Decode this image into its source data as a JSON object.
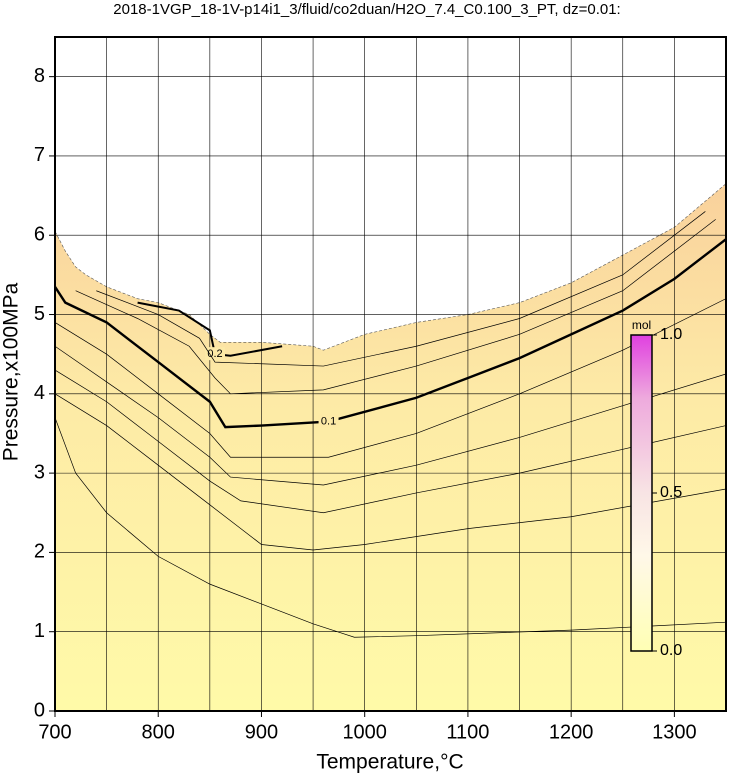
{
  "chart_data": {
    "type": "contour",
    "title": "2018-1VGP_18-1V-p14i1_3/fluid/co2duan/H2O_7.4_C0.100_3_PT, dz=0.01:",
    "x_label": "Temperature,°C",
    "y_label": "Pressure,x100MPa",
    "xlim": [
      700,
      1350
    ],
    "ylim": [
      0,
      8.5
    ],
    "xticks": [
      700,
      800,
      900,
      1000,
      1100,
      1200,
      1300
    ],
    "yticks": [
      0,
      1,
      2,
      3,
      4,
      5,
      6,
      7,
      8
    ],
    "xgrid": [
      750,
      800,
      850,
      900,
      950,
      1000,
      1050,
      1100,
      1150,
      1200,
      1250,
      1300
    ],
    "ygrid": [
      1,
      2,
      3,
      4,
      5,
      6,
      7,
      8
    ],
    "grid": true,
    "boundary": {
      "x": [
        700,
        710,
        720,
        730,
        750,
        780,
        800,
        830,
        850,
        860,
        900,
        950,
        960,
        1000,
        1050,
        1100,
        1150,
        1200,
        1250,
        1300,
        1350
      ],
      "y": [
        6.05,
        5.8,
        5.6,
        5.5,
        5.35,
        5.2,
        5.15,
        5.0,
        4.75,
        4.65,
        4.65,
        4.6,
        4.55,
        4.75,
        4.9,
        5.0,
        5.15,
        5.4,
        5.75,
        6.1,
        6.65
      ]
    },
    "contours": [
      {
        "level": 0.2,
        "width": 2,
        "x": [
          780,
          820,
          850,
          855,
          870,
          920
        ],
        "y": [
          5.15,
          5.05,
          4.8,
          4.5,
          4.48,
          4.6
        ]
      },
      {
        "level": 0.1,
        "width": 2.4,
        "x": [
          700,
          710,
          750,
          800,
          850,
          865,
          900,
          965,
          1050,
          1100,
          1150,
          1200,
          1250,
          1300,
          1350
        ],
        "y": [
          5.35,
          5.15,
          4.9,
          4.4,
          3.9,
          3.58,
          3.6,
          3.65,
          3.95,
          4.2,
          4.45,
          4.75,
          5.05,
          5.45,
          5.95
        ]
      },
      {
        "width": 0.7,
        "x": [
          740,
          800,
          840,
          855,
          960,
          1050,
          1150,
          1250,
          1330
        ],
        "y": [
          5.3,
          5.0,
          4.7,
          4.4,
          4.35,
          4.6,
          4.95,
          5.5,
          6.3
        ]
      },
      {
        "width": 0.7,
        "x": [
          720,
          780,
          830,
          855,
          870,
          960,
          1050,
          1150,
          1250,
          1340
        ],
        "y": [
          5.3,
          4.95,
          4.6,
          4.2,
          4.0,
          4.05,
          4.35,
          4.75,
          5.3,
          6.2
        ]
      },
      {
        "width": 0.7,
        "x": [
          700,
          750,
          800,
          850,
          870,
          965,
          1050,
          1150,
          1250,
          1350
        ],
        "y": [
          4.9,
          4.5,
          4.0,
          3.5,
          3.2,
          3.2,
          3.5,
          4.0,
          4.55,
          5.2
        ]
      },
      {
        "width": 0.7,
        "x": [
          700,
          750,
          800,
          850,
          870,
          960,
          1050,
          1150,
          1250,
          1350
        ],
        "y": [
          4.6,
          4.15,
          3.7,
          3.2,
          2.95,
          2.85,
          3.1,
          3.45,
          3.85,
          4.25
        ]
      },
      {
        "width": 0.7,
        "x": [
          700,
          750,
          800,
          850,
          880,
          960,
          1050,
          1150,
          1250,
          1350
        ],
        "y": [
          4.3,
          3.9,
          3.4,
          2.9,
          2.65,
          2.5,
          2.75,
          3.0,
          3.3,
          3.6
        ]
      },
      {
        "width": 0.7,
        "x": [
          700,
          750,
          800,
          850,
          880,
          900,
          950,
          1000,
          1100,
          1200,
          1350
        ],
        "y": [
          4.0,
          3.6,
          3.1,
          2.6,
          2.3,
          2.1,
          2.03,
          2.1,
          2.3,
          2.45,
          2.8
        ]
      },
      {
        "width": 0.7,
        "x": [
          700,
          720,
          750,
          800,
          850,
          900,
          950,
          990,
          1050,
          1200,
          1350
        ],
        "y": [
          3.7,
          3.0,
          2.5,
          1.95,
          1.6,
          1.35,
          1.1,
          0.93,
          0.95,
          1.02,
          1.12
        ]
      }
    ],
    "colorbar": {
      "label": "mol",
      "range": [
        0,
        1
      ],
      "ticks": [
        {
          "value": 0,
          "label": "0.0"
        },
        {
          "value": 0.5,
          "label": "0.5"
        },
        {
          "value": 1,
          "label": "1.0"
        }
      ]
    }
  }
}
